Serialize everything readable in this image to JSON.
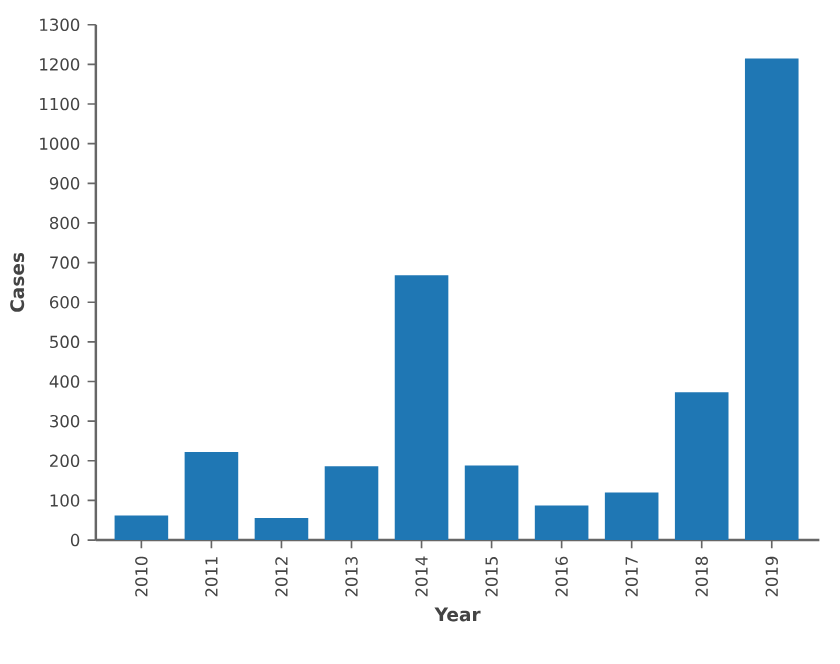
{
  "chart_data": {
    "type": "bar",
    "xlabel": "Year",
    "ylabel": "Cases",
    "categories": [
      "2010",
      "2011",
      "2012",
      "2013",
      "2014",
      "2015",
      "2016",
      "2017",
      "2018",
      "2019"
    ],
    "values": [
      62,
      222,
      56,
      186,
      668,
      188,
      87,
      120,
      373,
      1215
    ],
    "color": "#1f77b4",
    "ylim": [
      0,
      1300
    ],
    "yticks": [
      0,
      100,
      200,
      300,
      400,
      500,
      600,
      700,
      800,
      900,
      1000,
      1100,
      1200,
      1300
    ]
  }
}
